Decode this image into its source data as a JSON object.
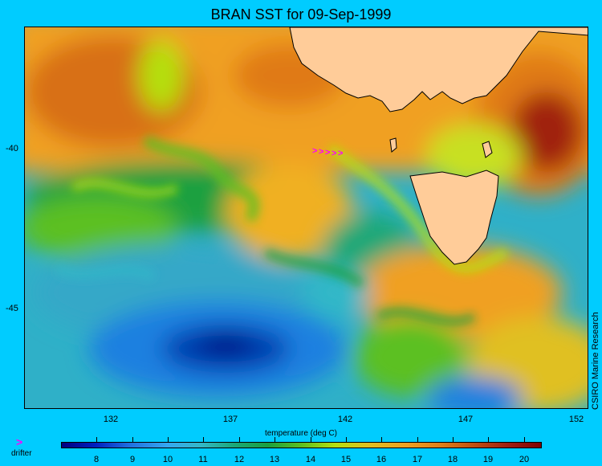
{
  "title": "BRAN SST for 09-Sep-1999",
  "x_ticks": [
    "132",
    "137",
    "142",
    "147",
    "152"
  ],
  "y_ticks": [
    "-40",
    "-45"
  ],
  "xlabel": "temperature (deg C)",
  "credit": "CSIRO Marine Research",
  "colorbar": {
    "labels": [
      "8",
      "9",
      "10",
      "11",
      "12",
      "13",
      "14",
      "15",
      "16",
      "17",
      "18",
      "19",
      "20"
    ],
    "min": 7,
    "max": 20.5,
    "colors": [
      "#000080",
      "#1f6fe0",
      "#33b8c8",
      "#1aa040",
      "#b4e010",
      "#f0a020",
      "#800000"
    ]
  },
  "legend": {
    "symbol": ">",
    "label": "drifter",
    "color": "#ff00ff"
  },
  "map": {
    "lon_range": [
      128,
      153
    ],
    "lat_range": [
      -48,
      -36
    ],
    "land_color": "#ffcc99"
  }
}
